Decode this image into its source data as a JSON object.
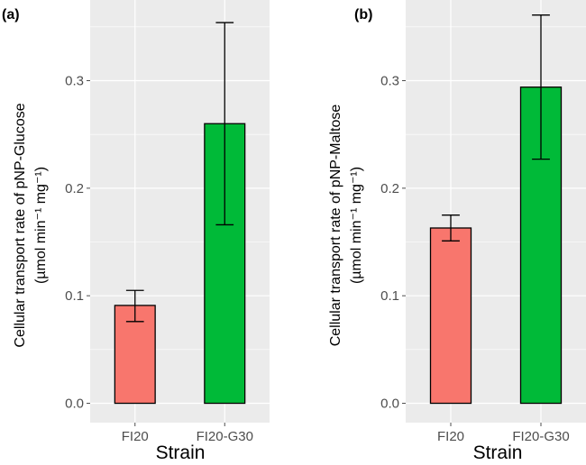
{
  "chart_data": [
    {
      "type": "bar",
      "panel_label": "(a)",
      "categories": [
        "FI20",
        "FI20-G30"
      ],
      "values": [
        0.091,
        0.26
      ],
      "error_low": [
        0.076,
        0.166
      ],
      "error_high": [
        0.105,
        0.354
      ],
      "colors": [
        "#F8766D",
        "#00BA38"
      ],
      "xlabel": "Strain",
      "ylabel_line1": "Cellular transport rate of pNP-Glucose",
      "ylabel_line2": "(µmol min⁻¹ mg⁻¹)",
      "ylim": [
        -0.018,
        0.375
      ],
      "yticks": [
        0.0,
        0.1,
        0.2,
        0.3
      ],
      "ytick_labels": [
        "0.0",
        "0.1",
        "0.2",
        "0.3"
      ],
      "grid": true
    },
    {
      "type": "bar",
      "panel_label": "(b)",
      "categories": [
        "FI20",
        "FI20-G30"
      ],
      "values": [
        0.163,
        0.294
      ],
      "error_low": [
        0.151,
        0.227
      ],
      "error_high": [
        0.175,
        0.361
      ],
      "colors": [
        "#F8766D",
        "#00BA38"
      ],
      "xlabel": "Strain",
      "ylabel_line1": "Cellular transport rate of pNP-Maltose",
      "ylabel_line2": "(µmol min⁻¹ mg⁻¹)",
      "ylim": [
        -0.018,
        0.375
      ],
      "yticks": [
        0.0,
        0.1,
        0.2,
        0.3
      ],
      "ytick_labels": [
        "0.0",
        "0.1",
        "0.2",
        "0.3"
      ],
      "grid": true
    }
  ]
}
